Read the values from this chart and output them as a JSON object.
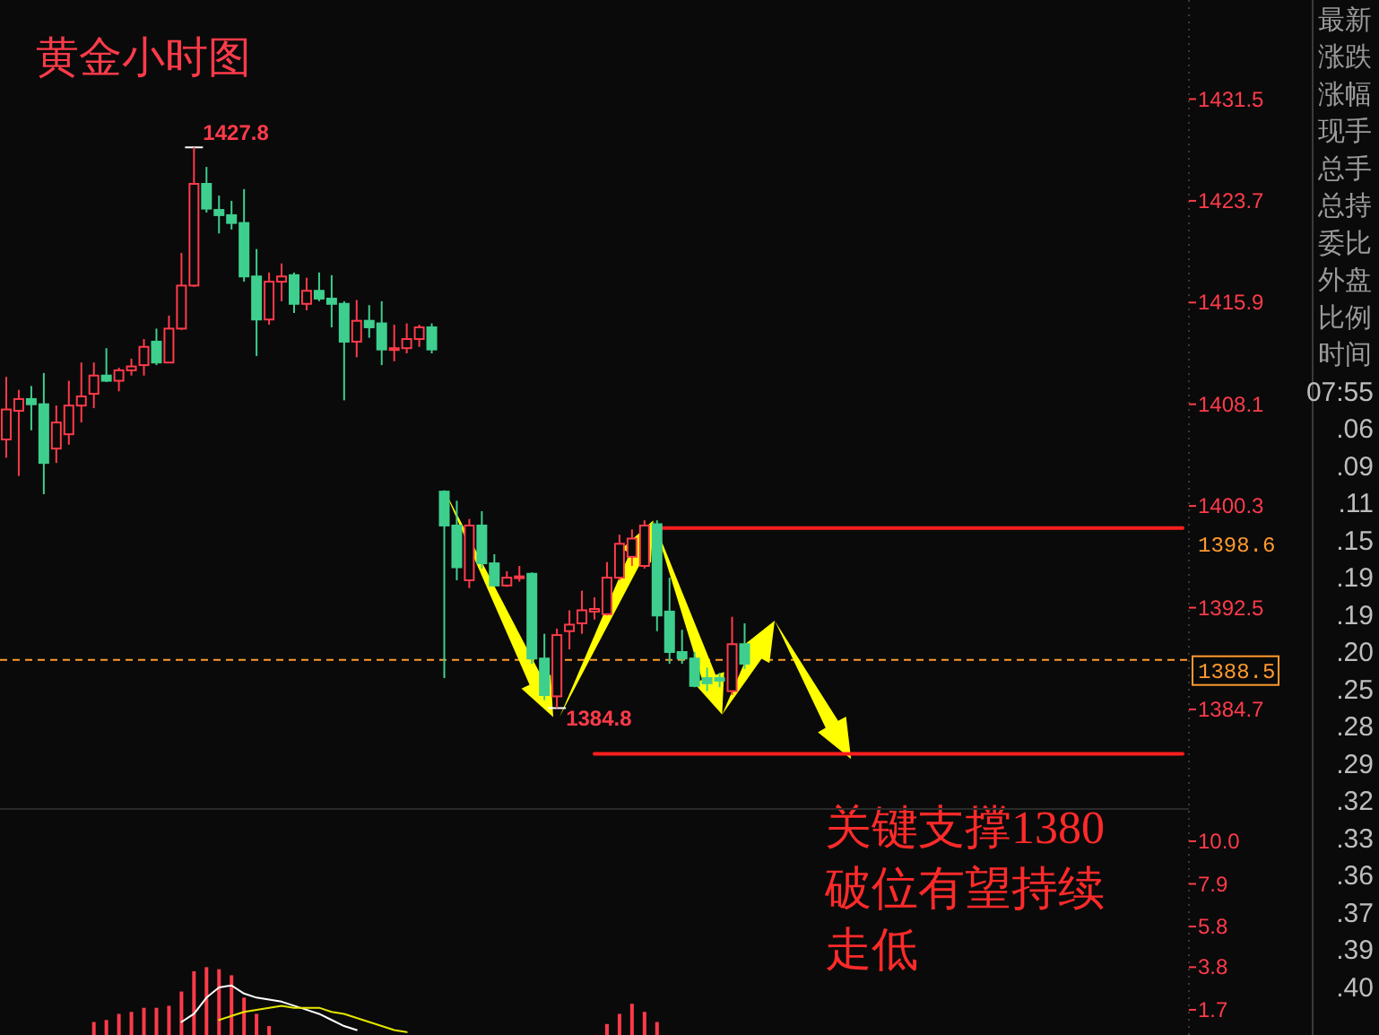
{
  "chart_data": [
    {
      "type": "candlestick",
      "title": "黄金小时图",
      "tick_labels": "y",
      "categories": [
        null,
        null,
        null,
        null,
        null,
        null,
        null,
        null,
        null,
        null,
        null,
        null,
        null,
        null,
        null,
        null,
        null,
        null,
        null,
        null,
        null,
        null,
        null,
        null,
        null,
        null,
        null,
        null,
        null,
        null,
        null,
        null,
        null,
        null,
        null,
        null,
        null,
        null,
        null,
        null,
        null,
        null,
        null,
        null,
        null,
        null,
        null,
        null,
        null,
        null,
        null,
        null,
        null,
        null,
        null,
        null,
        null,
        null,
        null,
        null,
        null,
        null,
        null,
        null,
        null,
        null,
        null,
        null,
        null,
        null,
        null,
        null,
        null,
        null,
        null,
        null,
        null,
        null,
        null,
        null,
        null,
        null,
        null,
        null,
        null,
        null,
        null,
        null,
        null,
        null,
        null,
        null,
        null,
        null,
        null
      ],
      "ohlc": [
        [
          1405.4,
          1410.2,
          1404.0,
          1407.7
        ],
        [
          1407.6,
          1409.2,
          1402.6,
          1408.5
        ],
        [
          1408.5,
          1409.5,
          1406.1,
          1408.1
        ],
        [
          1408.1,
          1410.5,
          1401.2,
          1403.6
        ],
        [
          1404.7,
          1408.0,
          1403.6,
          1406.7
        ],
        [
          1405.8,
          1409.9,
          1405.0,
          1408.0
        ],
        [
          1408.0,
          1411.3,
          1406.7,
          1408.7
        ],
        [
          1408.9,
          1411.3,
          1407.8,
          1410.3
        ],
        [
          1410.3,
          1412.4,
          1409.8,
          1409.9
        ],
        [
          1409.9,
          1410.9,
          1409.1,
          1410.7
        ],
        [
          1410.7,
          1411.6,
          1410.3,
          1411.0
        ],
        [
          1411.1,
          1413.1,
          1410.3,
          1412.5
        ],
        [
          1412.9,
          1413.9,
          1411.1,
          1411.3
        ],
        [
          1411.3,
          1414.9,
          1411.3,
          1413.9
        ],
        [
          1413.9,
          1419.7,
          1413.8,
          1417.2
        ],
        [
          1417.2,
          1427.8,
          1417.1,
          1425.0
        ],
        [
          1425.0,
          1426.3,
          1422.8,
          1423.1
        ],
        [
          1423.0,
          1424.1,
          1421.2,
          1422.6
        ],
        [
          1422.6,
          1423.7,
          1421.5,
          1422.0
        ],
        [
          1422.0,
          1424.6,
          1417.5,
          1417.9
        ],
        [
          1417.9,
          1420.0,
          1411.8,
          1414.6
        ],
        [
          1414.6,
          1418.2,
          1414.2,
          1417.5
        ],
        [
          1417.5,
          1418.9,
          1416.0,
          1417.9
        ],
        [
          1418.0,
          1418.2,
          1415.1,
          1415.8
        ],
        [
          1415.8,
          1417.8,
          1415.3,
          1416.8
        ],
        [
          1416.8,
          1418.2,
          1416.0,
          1416.2
        ],
        [
          1416.2,
          1418.0,
          1414.0,
          1415.8
        ],
        [
          1415.8,
          1416.0,
          1408.4,
          1412.9
        ],
        [
          1412.9,
          1416.1,
          1411.7,
          1414.5
        ],
        [
          1414.5,
          1415.7,
          1413.2,
          1414.0
        ],
        [
          1414.3,
          1416.0,
          1411.1,
          1412.3
        ],
        [
          1412.3,
          1414.2,
          1411.4,
          1412.4
        ],
        [
          1412.4,
          1414.3,
          1412.0,
          1413.1
        ],
        [
          1413.1,
          1414.2,
          1412.5,
          1414.0
        ],
        [
          1414.0,
          1414.3,
          1412.0,
          1412.3
        ],
        [
          1401.4,
          1401.5,
          1387.1,
          1398.8
        ],
        [
          1398.8,
          1400.7,
          1394.6,
          1395.6
        ],
        [
          1394.6,
          1399.3,
          1394.0,
          1398.8
        ],
        [
          1398.8,
          1399.9,
          1395.5,
          1395.9
        ],
        [
          1395.9,
          1396.6,
          1394.1,
          1394.2
        ],
        [
          1394.2,
          1395.3,
          1394.1,
          1394.8
        ],
        [
          1394.8,
          1395.7,
          1394.5,
          1394.9
        ],
        [
          1395.1,
          1395.2,
          1388.2,
          1388.6
        ],
        [
          1388.6,
          1390.5,
          1385.4,
          1385.8
        ],
        [
          1385.7,
          1390.9,
          1384.8,
          1390.4
        ],
        [
          1390.7,
          1392.3,
          1389.3,
          1391.2
        ],
        [
          1391.3,
          1393.8,
          1390.5,
          1392.3
        ],
        [
          1392.2,
          1393.3,
          1391.6,
          1392.4
        ],
        [
          1392.0,
          1396.0,
          1391.9,
          1394.8
        ],
        [
          1394.8,
          1398.1,
          1394.6,
          1397.4
        ],
        [
          1396.4,
          1398.5,
          1395.7,
          1397.8
        ],
        [
          1395.7,
          1399.2,
          1395.5,
          1398.8
        ],
        [
          1398.9,
          1399.2,
          1390.7,
          1391.9
        ],
        [
          1392.2,
          1394.8,
          1388.2,
          1389.1
        ],
        [
          1389.1,
          1390.8,
          1388.2,
          1388.6
        ],
        [
          1388.6,
          1389.1,
          1386.4,
          1386.5
        ],
        [
          1387.1,
          1387.9,
          1386.1,
          1386.7
        ],
        [
          1387.1,
          1387.5,
          1386.4,
          1386.9
        ],
        [
          1386.1,
          1391.8,
          1385.8,
          1389.7
        ],
        [
          1389.7,
          1391.3,
          1387.8,
          1388.2
        ],
        null,
        null,
        null,
        null,
        null,
        null,
        null,
        null,
        null,
        null,
        null,
        null,
        null,
        null,
        null,
        null,
        null,
        null,
        null,
        null,
        null,
        null,
        null,
        null,
        null,
        null,
        null,
        null,
        null,
        null,
        null,
        null,
        null,
        null,
        null
      ],
      "colors": [
        "#ff3b4a",
        "#ff3b4a",
        "#3ecf8e",
        "#3ecf8e",
        "#ff3b4a",
        "#ff3b4a",
        "#ff3b4a",
        "#ff3b4a",
        "#3ecf8e",
        "#ff3b4a",
        "#ff3b4a",
        "#ff3b4a",
        "#3ecf8e",
        "#ff3b4a",
        "#ff3b4a",
        "#ff3b4a",
        "#3ecf8e",
        "#3ecf8e",
        "#3ecf8e",
        "#3ecf8e",
        "#3ecf8e",
        "#ff3b4a",
        "#ff3b4a",
        "#3ecf8e",
        "#ff3b4a",
        "#3ecf8e",
        "#3ecf8e",
        "#3ecf8e",
        "#ff3b4a",
        "#3ecf8e",
        "#3ecf8e",
        "#ff3b4a",
        "#ff3b4a",
        "#ff3b4a",
        "#3ecf8e",
        "#3ecf8e",
        "#3ecf8e",
        "#ff3b4a",
        "#3ecf8e",
        "#3ecf8e",
        "#ff3b4a",
        "#ff3b4a",
        "#3ecf8e",
        "#3ecf8e",
        "#ff3b4a",
        "#ff3b4a",
        "#ff3b4a",
        "#ff3b4a",
        "#ff3b4a",
        "#ff3b4a",
        "#ff3b4a",
        "#ff3b4a",
        "#3ecf8e",
        "#3ecf8e",
        "#3ecf8e",
        "#3ecf8e",
        "#3ecf8e",
        "#3ecf8e",
        "#ff3b4a",
        "#3ecf8e",
        null,
        null,
        null,
        null,
        null,
        null,
        null,
        null,
        null,
        null,
        null,
        null,
        null,
        null,
        null,
        null,
        null,
        null,
        null,
        null,
        null,
        null,
        null,
        null,
        null,
        null,
        null,
        null,
        null,
        null,
        null,
        null,
        null,
        null,
        null
      ],
      "value_labels": [
        null,
        null,
        null,
        null,
        null,
        null,
        null,
        null,
        null,
        null,
        null,
        null,
        null,
        null,
        null,
        "1427.8",
        null,
        null,
        null,
        null,
        null,
        null,
        null,
        null,
        null,
        null,
        null,
        null,
        null,
        null,
        null,
        null,
        null,
        null,
        null,
        null,
        null,
        null,
        null,
        null,
        null,
        null,
        null,
        null,
        "1384.8",
        null,
        null,
        null,
        null,
        null,
        null,
        null,
        null,
        null,
        null,
        null,
        null,
        null,
        null,
        null,
        null,
        null,
        null,
        null,
        null,
        null,
        null,
        null,
        null,
        null,
        null,
        null,
        null,
        null,
        null,
        null,
        null,
        null,
        null,
        null,
        null,
        null,
        null,
        null,
        null,
        null,
        null,
        null,
        null,
        null,
        null,
        null,
        null,
        null,
        null
      ],
      "series": [
        {
          "type": "line",
          "color": "#ff1e1e",
          "values": [
            null,
            null,
            null,
            null,
            null,
            null,
            null,
            null,
            null,
            null,
            null,
            null,
            null,
            null,
            null,
            null,
            null,
            null,
            null,
            null,
            null,
            null,
            null,
            null,
            null,
            null,
            null,
            null,
            null,
            null,
            null,
            null,
            null,
            null,
            null,
            null,
            null,
            null,
            null,
            null,
            null,
            null,
            null,
            null,
            null,
            null,
            null,
            null,
            null,
            null,
            null,
            null,
            1398.6,
            1398.6,
            1398.6,
            1398.6,
            1398.6,
            1398.6,
            1398.6,
            1398.6,
            1398.6,
            1398.6,
            1398.6,
            1398.6,
            1398.6,
            1398.6,
            1398.6,
            1398.6,
            1398.6,
            1398.6,
            1398.6,
            1398.6,
            1398.6,
            1398.6,
            1398.6,
            1398.6,
            1398.6,
            1398.6,
            1398.6,
            1398.6,
            1398.6,
            1398.6,
            1398.6,
            1398.6,
            1398.6,
            1398.6,
            1398.6,
            1398.6,
            1398.6,
            1398.6,
            1398.6,
            1398.6,
            1398.6,
            1398.6,
            1398.6
          ],
          "value_labels": [
            null,
            null,
            null,
            null,
            null,
            null,
            null,
            null,
            null,
            null,
            null,
            null,
            null,
            null,
            null,
            null,
            null,
            null,
            null,
            null,
            null,
            null,
            null,
            null,
            null,
            null,
            null,
            null,
            null,
            null,
            null,
            null,
            null,
            null,
            null,
            null,
            null,
            null,
            null,
            null,
            null,
            null,
            null,
            null,
            null,
            null,
            null,
            null,
            null,
            null,
            null,
            null,
            null,
            null,
            null,
            null,
            null,
            null,
            null,
            null,
            null,
            null,
            null,
            null,
            null,
            null,
            null,
            null,
            null,
            null,
            null,
            null,
            null,
            null,
            null,
            null,
            null,
            null,
            null,
            null,
            null,
            null,
            null,
            null,
            null,
            null,
            null,
            null,
            null,
            null,
            null,
            null,
            null,
            null,
            "1398.6"
          ]
        },
        {
          "type": "line",
          "color": "#ff1e1e",
          "values": [
            null,
            null,
            null,
            null,
            null,
            null,
            null,
            null,
            null,
            null,
            null,
            null,
            null,
            null,
            null,
            null,
            null,
            null,
            null,
            null,
            null,
            null,
            null,
            null,
            null,
            null,
            null,
            null,
            null,
            null,
            null,
            null,
            null,
            null,
            null,
            null,
            null,
            null,
            null,
            null,
            null,
            null,
            null,
            null,
            null,
            null,
            null,
            1381.3,
            1381.3,
            1381.3,
            1381.3,
            1381.3,
            1381.3,
            1381.3,
            1381.3,
            1381.3,
            1381.3,
            1381.3,
            1381.3,
            1381.3,
            1381.3,
            1381.3,
            1381.3,
            1381.3,
            1381.3,
            1381.3,
            1381.3,
            1381.3,
            1381.3,
            1381.3,
            1381.3,
            1381.3,
            1381.3,
            1381.3,
            1381.3,
            1381.3,
            1381.3,
            1381.3,
            1381.3,
            1381.3,
            1381.3,
            1381.3,
            1381.3,
            1381.3,
            1381.3,
            1381.3,
            1381.3,
            1381.3,
            1381.3,
            1381.3,
            1381.3,
            1381.3,
            1381.3,
            1381.3,
            1381.3
          ]
        }
      ],
      "ref_lines": [
        {
          "axis": "y",
          "value": 1388.5,
          "label": "1388.5",
          "color": "#ff9a2e",
          "line_style": "dashed"
        }
      ],
      "ylim": [
        1377.2,
        1439.1
      ],
      "yticks": [
        1431.5,
        1423.7,
        1415.9,
        1408.1,
        1400.3,
        1392.5,
        1384.7
      ],
      "annotations": [
        "关键支撑1380",
        "破位有望持续",
        "走低"
      ]
    },
    {
      "type": "bar",
      "tick_labels": "y",
      "categories": [
        null,
        null,
        null,
        null,
        null,
        null,
        null,
        null,
        null,
        null,
        null,
        null,
        null,
        null,
        null,
        null,
        null,
        null,
        null,
        null,
        null,
        null,
        null,
        null,
        null,
        null,
        null,
        null,
        null,
        null,
        null,
        null,
        null,
        null,
        null,
        null,
        null,
        null,
        null,
        null,
        null,
        null,
        null,
        null,
        null,
        null,
        null,
        null,
        null,
        null,
        null,
        null,
        null,
        null,
        null,
        null,
        null,
        null,
        null,
        null,
        null,
        null,
        null,
        null,
        null,
        null,
        null,
        null,
        null,
        null,
        null,
        null,
        null,
        null,
        null,
        null,
        null,
        null,
        null,
        null,
        null,
        null,
        null,
        null,
        null,
        null,
        null,
        null,
        null,
        null,
        null,
        null,
        null,
        null,
        null
      ],
      "series": [
        {
          "type": "bar",
          "color": "#ff3b4a",
          "values": [
            null,
            null,
            null,
            null,
            null,
            null,
            null,
            1.1,
            1.2,
            1.5,
            1.6,
            1.8,
            1.8,
            1.9,
            2.6,
            3.6,
            3.8,
            3.7,
            3.4,
            2.3,
            1.5,
            0.9,
            null,
            null,
            null,
            null,
            null,
            null,
            null,
            null,
            null,
            null,
            null,
            null,
            null,
            null,
            null,
            null,
            null,
            null,
            null,
            null,
            null,
            null,
            null,
            null,
            null,
            null,
            1.0,
            1.5,
            2.0,
            1.6,
            1.1,
            null,
            null,
            null,
            null,
            null,
            null,
            null,
            null,
            null,
            null,
            null,
            null,
            null,
            null,
            null,
            null,
            null,
            null,
            null,
            null,
            null,
            null,
            null,
            null,
            null,
            null,
            null,
            null,
            null,
            null,
            null,
            null,
            null,
            null,
            null,
            null,
            null,
            null,
            null,
            null,
            null,
            null
          ]
        },
        {
          "type": "line",
          "color": "#ffffff",
          "values": [
            null,
            null,
            null,
            null,
            null,
            null,
            null,
            null,
            null,
            null,
            null,
            null,
            null,
            null,
            1.1,
            1.5,
            2.3,
            2.8,
            2.9,
            2.5,
            2.3,
            2.2,
            2.1,
            1.9,
            1.7,
            1.5,
            1.2,
            0.9,
            0.7,
            null,
            null,
            null,
            null,
            null,
            null,
            null,
            null,
            null,
            null,
            null,
            null,
            null,
            null,
            null,
            null,
            null,
            null,
            null,
            null,
            null,
            null,
            null,
            null,
            null,
            null,
            null,
            null,
            null,
            null,
            null,
            null,
            null,
            null,
            null,
            null,
            null,
            null,
            null,
            null,
            null,
            null,
            null,
            null,
            null,
            null,
            null,
            null,
            null,
            null,
            null,
            null,
            null,
            null,
            null,
            null,
            null,
            null,
            null,
            null,
            null,
            null,
            null,
            null,
            null,
            null
          ]
        },
        {
          "type": "line",
          "color": "#e6e600",
          "values": [
            null,
            null,
            null,
            null,
            null,
            null,
            null,
            null,
            null,
            null,
            null,
            null,
            null,
            null,
            null,
            null,
            null,
            1.2,
            1.4,
            1.6,
            1.7,
            1.8,
            1.9,
            1.8,
            1.8,
            1.8,
            1.6,
            1.5,
            1.3,
            1.1,
            0.9,
            0.7,
            0.6,
            null,
            null,
            null,
            null,
            null,
            null,
            null,
            null,
            null,
            null,
            null,
            null,
            null,
            null,
            null,
            null,
            null,
            null,
            null,
            null,
            null,
            null,
            null,
            null,
            null,
            null,
            null,
            null,
            null,
            null,
            null,
            null,
            null,
            null,
            null,
            null,
            null,
            null,
            null,
            null,
            null,
            null,
            null,
            null,
            null,
            null,
            null,
            null,
            null,
            null,
            null,
            null,
            null,
            null,
            null,
            null,
            null,
            null,
            null,
            null,
            null,
            null
          ]
        }
      ],
      "ylim": [
        0.46,
        11.5
      ],
      "yticks": [
        {
          "value": 10,
          "label": "10.0"
        },
        7.9,
        5.8,
        3.8,
        1.7
      ]
    },
    {
      "type": "other",
      "annotations": [
        "最新",
        "涨跌",
        "涨幅",
        "现手",
        "总手",
        "总持",
        "委比",
        "外盘",
        "比例",
        "时间",
        "07:55",
        ".06",
        ".09",
        ".11",
        ".15",
        ".19",
        ".19",
        ".20",
        ".25",
        ".28",
        ".29",
        ".32",
        ".33",
        ".36",
        ".37",
        ".39",
        ".40"
      ]
    }
  ]
}
